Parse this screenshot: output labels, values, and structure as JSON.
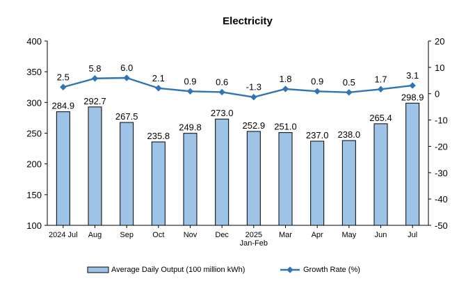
{
  "chart_data": {
    "type": "bar",
    "title": "Electricity",
    "categories": [
      "2024 Jul",
      "Aug",
      "Sep",
      "Oct",
      "Nov",
      "Dec",
      "2025 Jan-Feb",
      "Mar",
      "Apr",
      "May",
      "Jun",
      "Jul"
    ],
    "category_lines": [
      [
        "2024 Jul"
      ],
      [
        "Aug"
      ],
      [
        "Sep"
      ],
      [
        "Oct"
      ],
      [
        "Nov"
      ],
      [
        "Dec"
      ],
      [
        "2025",
        "Jan-Feb"
      ],
      [
        "Mar"
      ],
      [
        "Apr"
      ],
      [
        "May"
      ],
      [
        "Jun"
      ],
      [
        "Jul"
      ]
    ],
    "series": [
      {
        "name": "Average Daily Output (100 million kWh)",
        "type": "bar",
        "axis": "left",
        "color": "#9DC3E6",
        "border_color": "#000000",
        "values": [
          284.9,
          292.7,
          267.5,
          235.8,
          249.8,
          273.0,
          252.9,
          251.0,
          237.0,
          238.0,
          265.4,
          298.9
        ],
        "labels": [
          "284.9",
          "292.7",
          "267.5",
          "235.8",
          "249.8",
          "273.0",
          "252.9",
          "251.0",
          "237.0",
          "238.0",
          "265.4",
          "298.9"
        ]
      },
      {
        "name": "Growth Rate (%)",
        "type": "line",
        "axis": "right",
        "color": "#2E75B6",
        "values": [
          2.5,
          5.8,
          6.0,
          2.1,
          0.9,
          0.6,
          -1.3,
          1.8,
          0.9,
          0.5,
          1.7,
          3.1
        ],
        "labels": [
          "2.5",
          "5.8",
          "6.0",
          "2.1",
          "0.9",
          "0.6",
          "-1.3",
          "1.8",
          "0.9",
          "0.5",
          "1.7",
          "3.1"
        ]
      }
    ],
    "y_left": {
      "min": 100,
      "max": 400,
      "ticks": [
        "400",
        "350",
        "300",
        "250",
        "200",
        "150",
        "100"
      ]
    },
    "y_right": {
      "min": -50,
      "max": 20,
      "ticks": [
        "20",
        "10",
        "0",
        "-10",
        "-20",
        "-30",
        "-40",
        "-50"
      ]
    },
    "grid": false,
    "legend_position": "bottom"
  }
}
